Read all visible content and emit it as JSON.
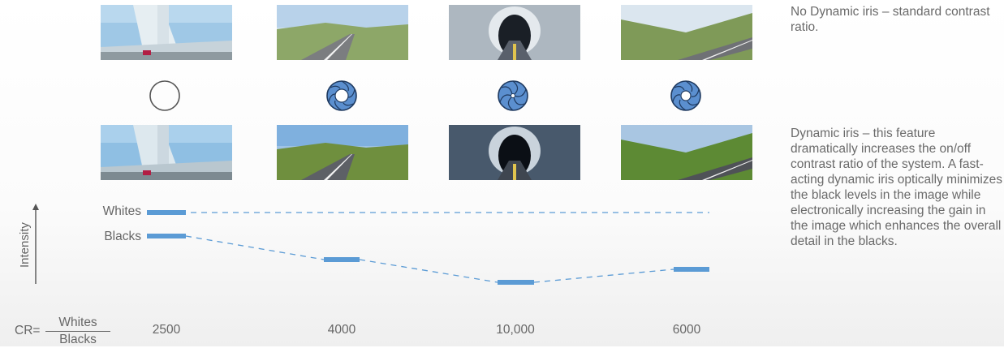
{
  "columns": [
    {
      "scene": "highway-overpass",
      "top_icon": "iris-open-icon",
      "bottom_icon": "iris-open-icon",
      "cr": "2500",
      "whites": "high",
      "blacks": "high"
    },
    {
      "scene": "country-road",
      "top_icon": "iris-open-icon",
      "bottom_icon": "iris-partial-icon",
      "cr": "4000",
      "whites": "high",
      "blacks": "mid"
    },
    {
      "scene": "mountain-tunnel",
      "top_icon": "iris-open-icon",
      "bottom_icon": "iris-closed-icon",
      "cr": "10,000",
      "whites": "high",
      "blacks": "low"
    },
    {
      "scene": "hillside-road",
      "top_icon": "iris-open-icon",
      "bottom_icon": "iris-partial-icon",
      "cr": "6000",
      "whites": "high",
      "blacks": "mid-high"
    }
  ],
  "notes": {
    "top": "No Dynamic iris – standard contrast ratio.",
    "bottom": "Dynamic iris – this feature dramatically increases the on/off contrast ratio of the system. A fast-acting dynamic iris optically minimizes the black levels in the image while electronically increasing the gain in the image which enhances the overall detail in the blacks."
  },
  "levels": {
    "whites_label": "Whites",
    "blacks_label": "Blacks",
    "y_axis_label": "Intensity"
  },
  "formula": {
    "prefix": "CR=",
    "numerator": "Whites",
    "denominator": "Blacks"
  },
  "colors": {
    "bar": "#5b9bd5",
    "iris_fill": "#5b8fcf",
    "iris_stroke": "#1f3a60",
    "text": "#666666"
  }
}
